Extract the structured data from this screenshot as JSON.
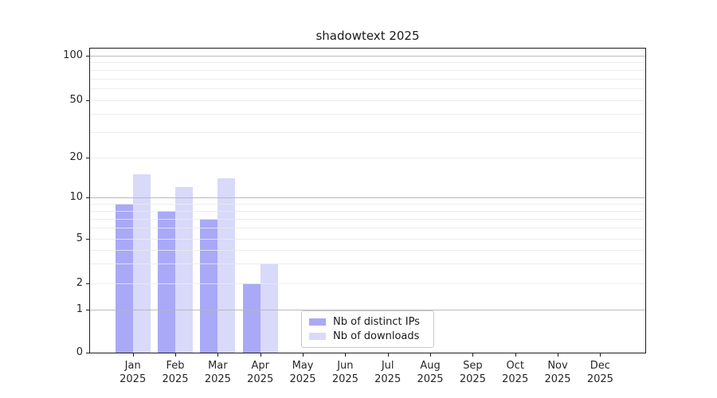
{
  "title": "shadowtext 2025",
  "chart_data": {
    "type": "bar",
    "title": "shadowtext 2025",
    "categories": [
      "Jan 2025",
      "Feb 2025",
      "Mar 2025",
      "Apr 2025",
      "May 2025",
      "Jun 2025",
      "Jul 2025",
      "Aug 2025",
      "Sep 2025",
      "Oct 2025",
      "Nov 2025",
      "Dec 2025"
    ],
    "series": [
      {
        "name": "Nb of distinct IPs",
        "color": "#a9a9f7",
        "values": [
          9,
          8,
          7,
          2,
          0,
          0,
          0,
          0,
          0,
          0,
          0,
          0
        ]
      },
      {
        "name": "Nb of downloads",
        "color": "#d9d9fa",
        "values": [
          15,
          12,
          14,
          3,
          0,
          0,
          0,
          0,
          0,
          0,
          0,
          0
        ]
      }
    ],
    "xlabel": "",
    "ylabel": "",
    "x_tick_months": [
      "Jan",
      "Feb",
      "Mar",
      "Apr",
      "May",
      "Jun",
      "Jul",
      "Aug",
      "Sep",
      "Oct",
      "Nov",
      "Dec"
    ],
    "x_tick_year": "2025",
    "y_tick_labels": [
      "0",
      "1",
      "2",
      "5",
      "10",
      "20",
      "50",
      "100"
    ],
    "y_tick_values": [
      0,
      1,
      2,
      5,
      10,
      20,
      50,
      100
    ],
    "y_minor_gridline_values": [
      3,
      4,
      6,
      7,
      8,
      9,
      30,
      40,
      60,
      70,
      80,
      90
    ],
    "y_emphasized_gridline_values": [
      1,
      10,
      100
    ],
    "yscale": "log-like (linear 0 to 1)",
    "ylim": [
      0,
      105
    ],
    "grid": "horizontal major+minor",
    "legend_position": "lower center"
  },
  "colors": {
    "bar_distinct_ips": "#a9a9f7",
    "bar_downloads": "#d9d9fa",
    "grid_minor": "#ececec",
    "grid_emphasized": "#bcbcbc",
    "spine": "#1f1f1f",
    "text": "#262626",
    "legend_border": "#cbcbcb",
    "background": "#ffffff"
  }
}
